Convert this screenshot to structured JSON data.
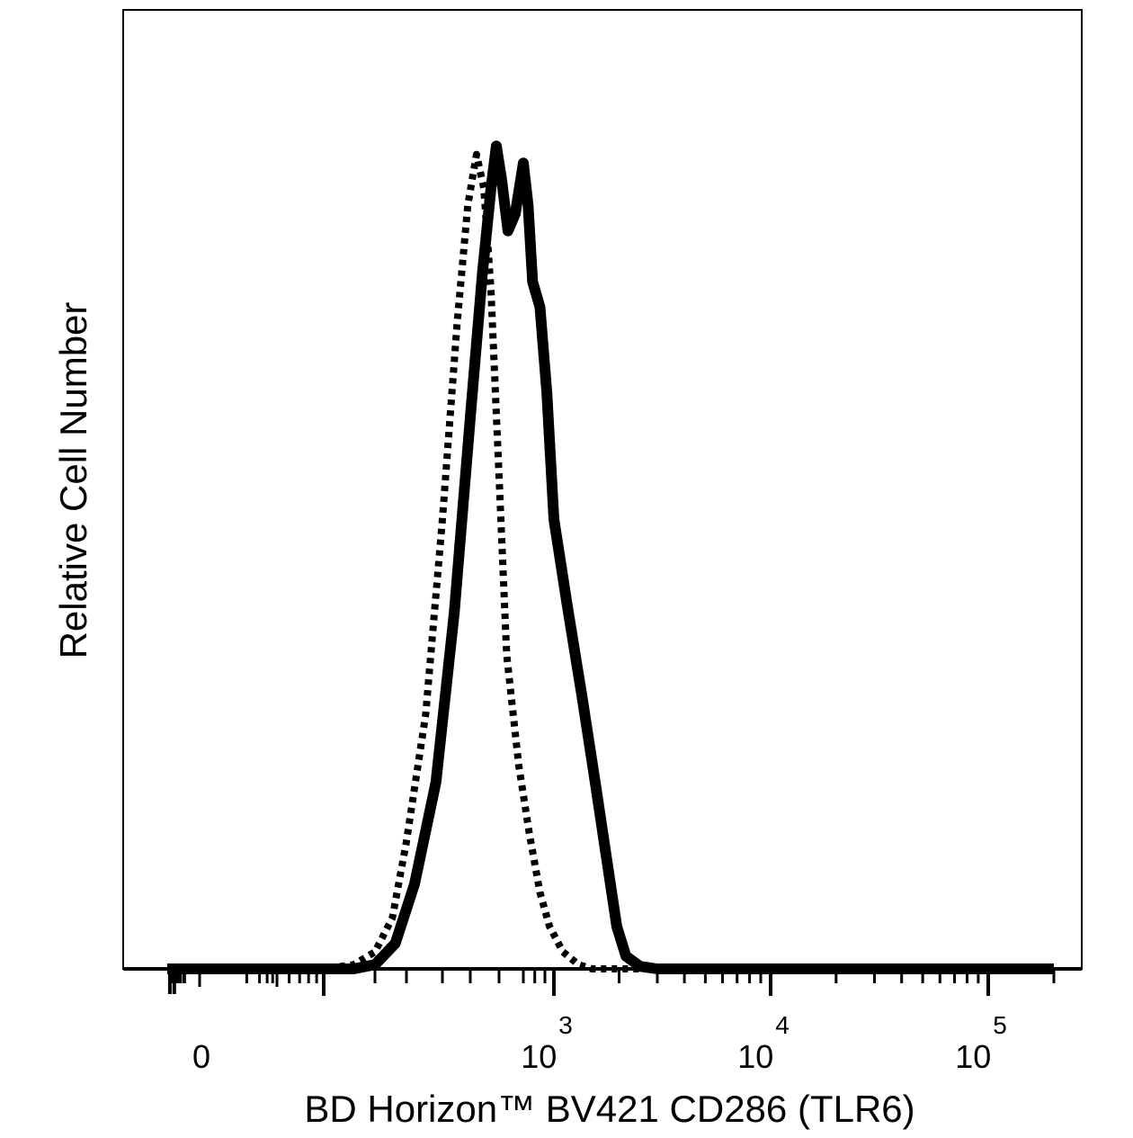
{
  "chart_data": {
    "type": "line",
    "xlabel": "BD Horizon™ BV421 CD286 (TLR6)",
    "ylabel": "Relative Cell Number",
    "x_scale": "biexponential",
    "x_tick_labels": [
      {
        "base": "0",
        "exp": "",
        "value": 0
      },
      {
        "base": "10",
        "exp": "3",
        "value": 1000
      },
      {
        "base": "10",
        "exp": "4",
        "value": 10000
      },
      {
        "base": "10",
        "exp": "5",
        "value": 100000
      }
    ],
    "xlim": [
      -150,
      200000
    ],
    "ylim": [
      0,
      100
    ],
    "grid": false,
    "legend": "none",
    "colors": {
      "line": "#000000",
      "background": "#ffffff"
    },
    "series": [
      {
        "style": "dotted",
        "points": [
          {
            "x": -150,
            "y": 0
          },
          {
            "x": 100,
            "y": 0
          },
          {
            "x": 150,
            "y": 0.5
          },
          {
            "x": 200,
            "y": 2
          },
          {
            "x": 250,
            "y": 6
          },
          {
            "x": 300,
            "y": 15
          },
          {
            "x": 350,
            "y": 30
          },
          {
            "x": 400,
            "y": 53
          },
          {
            "x": 450,
            "y": 76
          },
          {
            "x": 490,
            "y": 90
          },
          {
            "x": 520,
            "y": 96
          },
          {
            "x": 545,
            "y": 92
          },
          {
            "x": 570,
            "y": 80
          },
          {
            "x": 600,
            "y": 58
          },
          {
            "x": 630,
            "y": 37
          },
          {
            "x": 680,
            "y": 24
          },
          {
            "x": 750,
            "y": 16
          },
          {
            "x": 850,
            "y": 9
          },
          {
            "x": 950,
            "y": 5
          },
          {
            "x": 1100,
            "y": 2
          },
          {
            "x": 1300,
            "y": 0.5
          },
          {
            "x": 1500,
            "y": 0
          },
          {
            "x": 200000,
            "y": 0
          }
        ]
      },
      {
        "style": "solid",
        "points": [
          {
            "x": -150,
            "y": 0
          },
          {
            "x": 150,
            "y": 0
          },
          {
            "x": 200,
            "y": 0.5
          },
          {
            "x": 260,
            "y": 3
          },
          {
            "x": 320,
            "y": 10
          },
          {
            "x": 380,
            "y": 22
          },
          {
            "x": 440,
            "y": 42
          },
          {
            "x": 500,
            "y": 65
          },
          {
            "x": 540,
            "y": 82
          },
          {
            "x": 570,
            "y": 92
          },
          {
            "x": 590,
            "y": 97
          },
          {
            "x": 610,
            "y": 93
          },
          {
            "x": 635,
            "y": 87
          },
          {
            "x": 665,
            "y": 89
          },
          {
            "x": 700,
            "y": 95
          },
          {
            "x": 740,
            "y": 90
          },
          {
            "x": 780,
            "y": 81
          },
          {
            "x": 850,
            "y": 78
          },
          {
            "x": 920,
            "y": 68
          },
          {
            "x": 1000,
            "y": 53
          },
          {
            "x": 1150,
            "y": 43
          },
          {
            "x": 1350,
            "y": 32
          },
          {
            "x": 1550,
            "y": 22
          },
          {
            "x": 1750,
            "y": 13
          },
          {
            "x": 1950,
            "y": 5
          },
          {
            "x": 2150,
            "y": 1.5
          },
          {
            "x": 2500,
            "y": 0.3
          },
          {
            "x": 3000,
            "y": 0
          },
          {
            "x": 200000,
            "y": 0
          }
        ]
      }
    ]
  }
}
